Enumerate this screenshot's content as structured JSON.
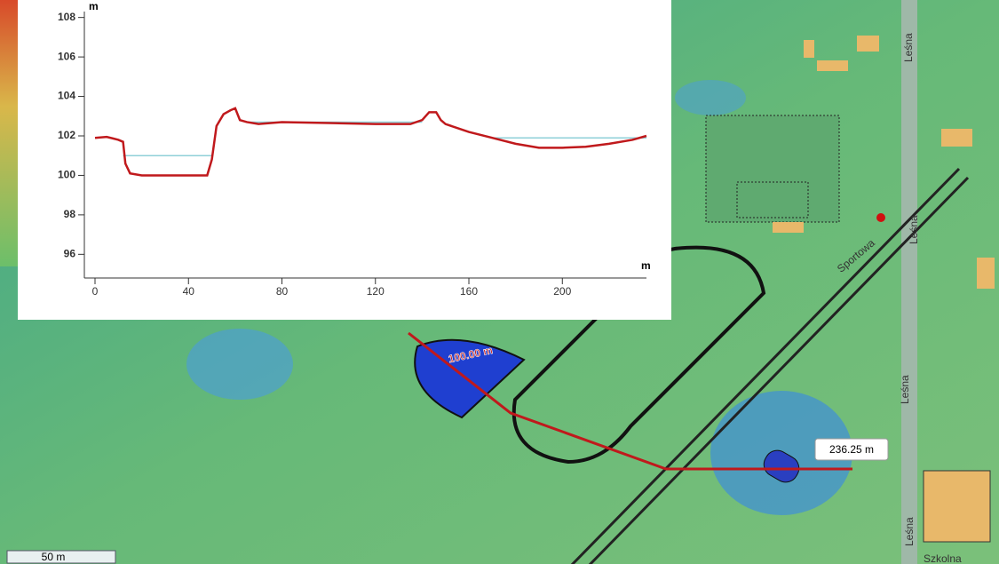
{
  "chart_data": {
    "type": "line",
    "x_unit": "m",
    "y_unit": "m",
    "xlim": [
      0,
      236
    ],
    "ylim": [
      94.8,
      108.3
    ],
    "xticks": [
      0,
      40,
      80,
      120,
      160,
      200
    ],
    "yticks": [
      96,
      98,
      100,
      102,
      104,
      106,
      108
    ],
    "series": [
      {
        "color": "#c0191c",
        "x": [
          0,
          5,
          10,
          12,
          13,
          15,
          20,
          48,
          50,
          52,
          55,
          58,
          60,
          62,
          65,
          70,
          80,
          100,
          120,
          135,
          140,
          143,
          146,
          148,
          150,
          160,
          170,
          180,
          190,
          200,
          210,
          220,
          230,
          236
        ],
        "values": [
          101.9,
          101.95,
          101.8,
          101.7,
          100.6,
          100.1,
          100,
          100,
          100.8,
          102.5,
          103.1,
          103.3,
          103.4,
          102.8,
          102.7,
          102.6,
          102.7,
          102.65,
          102.6,
          102.6,
          102.8,
          103.2,
          103.2,
          102.8,
          102.6,
          102.2,
          101.9,
          101.6,
          101.4,
          101.4,
          101.45,
          101.6,
          101.8,
          102.0
        ]
      },
      {
        "color": "#8fd0d8",
        "x": [
          12,
          50,
          null,
          65,
          140,
          null,
          170,
          236
        ],
        "values": [
          101.0,
          101.0,
          null,
          102.7,
          102.7,
          null,
          101.9,
          101.9
        ]
      }
    ]
  },
  "map": {
    "segment_label": "100.00 m",
    "total_label": "236.25 m",
    "scale_label": "50 m",
    "streets": [
      "Sportowa",
      "Leśna",
      "Leśna",
      "Leśna",
      "Leśna",
      "Szkolna"
    ]
  }
}
